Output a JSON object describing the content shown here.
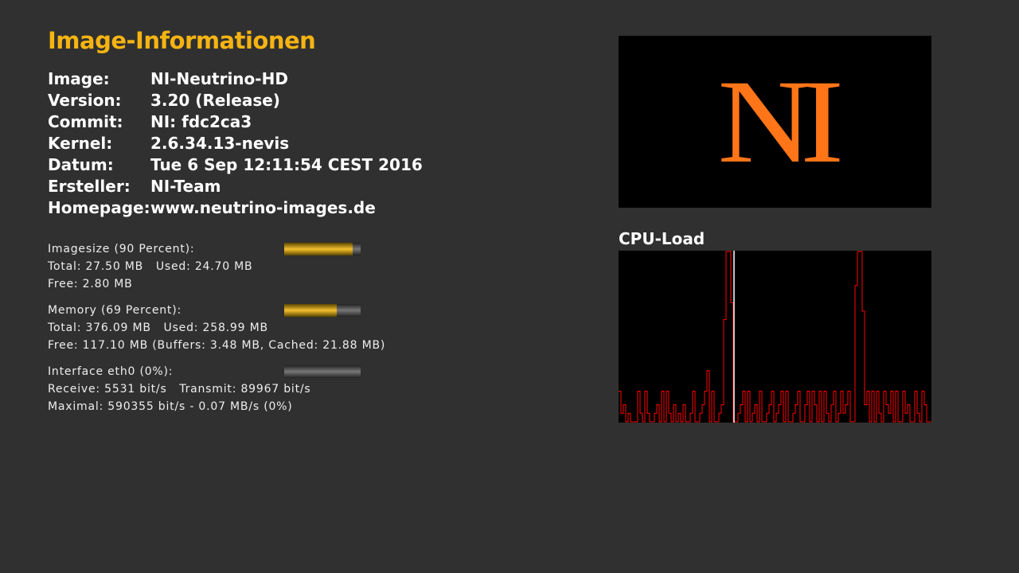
{
  "title": "Image-Informationen",
  "info": [
    {
      "k": "Image:",
      "v": "NI-Neutrino-HD"
    },
    {
      "k": "Version:",
      "v": "3.20 (Release)"
    },
    {
      "k": "Commit:",
      "v": "NI: fdc2ca3"
    },
    {
      "k": "Kernel:",
      "v": "2.6.34.13-nevis"
    },
    {
      "k": "Datum:",
      "v": "Tue 6 Sep 12:11:54 CEST 2016"
    },
    {
      "k": "Ersteller:",
      "v": "NI-Team"
    },
    {
      "k": "Homepage:",
      "v": "www.neutrino-images.de"
    }
  ],
  "imagesize": {
    "label": "Imagesize (90 Percent):",
    "line1": "Total: 27.50 MB   Used: 24.70 MB",
    "line2": "Free: 2.80 MB",
    "percent": 90
  },
  "memory": {
    "label": "Memory (69 Percent):",
    "line1": "Total: 376.09 MB   Used: 258.99 MB",
    "line2": "Free: 117.10 MB (Buffers: 3.48 MB, Cached: 21.88 MB)",
    "percent": 69
  },
  "network": {
    "label": "Interface eth0 (0%):",
    "line1": "Receive: 5531 bit/s   Transmit: 89967 bit/s",
    "line2": "Maximal: 590355 bit/s - 0.07 MB/s (0%)",
    "percent": 0
  },
  "logo": "NI",
  "cpu": {
    "title": "CPU-Load",
    "color": "#ff0000",
    "cursor_index": 48,
    "values": [
      18,
      5,
      10,
      0,
      5,
      0,
      0,
      0,
      18,
      5,
      0,
      18,
      5,
      0,
      0,
      5,
      10,
      0,
      18,
      0,
      18,
      5,
      0,
      10,
      0,
      5,
      0,
      10,
      0,
      0,
      5,
      18,
      0,
      0,
      5,
      10,
      18,
      30,
      0,
      18,
      0,
      0,
      5,
      10,
      60,
      100,
      100,
      70,
      0,
      0,
      5,
      10,
      18,
      0,
      18,
      0,
      5,
      10,
      0,
      18,
      0,
      0,
      5,
      10,
      18,
      0,
      5,
      10,
      18,
      0,
      18,
      0,
      0,
      5,
      10,
      18,
      0,
      0,
      10,
      18,
      0,
      18,
      10,
      0,
      18,
      0,
      18,
      5,
      0,
      10,
      18,
      0,
      5,
      18,
      5,
      10,
      18,
      0,
      0,
      80,
      100,
      100,
      65,
      10,
      18,
      0,
      18,
      0,
      18,
      5,
      0,
      18,
      10,
      5,
      18,
      0,
      18,
      0,
      0,
      18,
      5,
      10,
      0,
      0,
      18,
      5,
      0,
      18,
      10,
      0,
      0
    ]
  }
}
